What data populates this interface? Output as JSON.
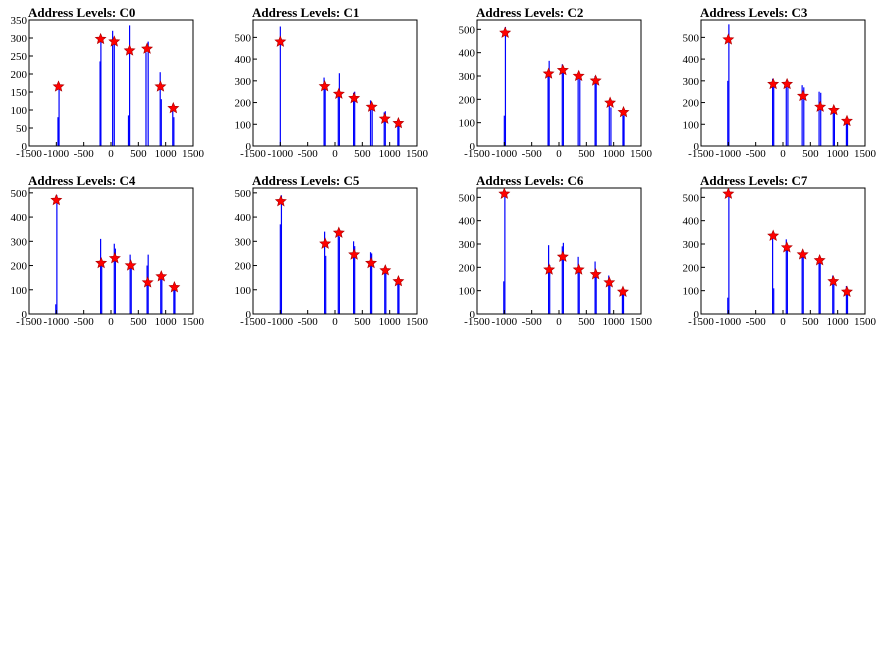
{
  "chart_data": [
    {
      "type": "bar",
      "title": "Address Levels: C0",
      "xlim": [
        -1500,
        1500
      ],
      "ylim": [
        0,
        350
      ],
      "xticks": [
        -1500,
        -1000,
        -500,
        0,
        500,
        1000,
        1500
      ],
      "yticks": [
        0,
        50,
        100,
        150,
        200,
        250,
        300,
        350
      ],
      "histogram": [
        {
          "x": -970,
          "y": 80
        },
        {
          "x": -950,
          "y": 175
        },
        {
          "x": -200,
          "y": 235
        },
        {
          "x": -185,
          "y": 300
        },
        {
          "x": 30,
          "y": 320
        },
        {
          "x": 60,
          "y": 300
        },
        {
          "x": 320,
          "y": 85
        },
        {
          "x": 340,
          "y": 335
        },
        {
          "x": 640,
          "y": 260
        },
        {
          "x": 680,
          "y": 290
        },
        {
          "x": 900,
          "y": 205
        },
        {
          "x": 920,
          "y": 130
        },
        {
          "x": 1130,
          "y": 115
        },
        {
          "x": 1150,
          "y": 80
        }
      ],
      "peaks": [
        {
          "x": -960,
          "y": 165
        },
        {
          "x": -190,
          "y": 297
        },
        {
          "x": 60,
          "y": 290
        },
        {
          "x": 340,
          "y": 265
        },
        {
          "x": 660,
          "y": 270
        },
        {
          "x": 905,
          "y": 165
        },
        {
          "x": 1140,
          "y": 105
        }
      ]
    },
    {
      "type": "bar",
      "title": "Address Levels: C1",
      "xlim": [
        -1500,
        1500
      ],
      "ylim": [
        0,
        580
      ],
      "xticks": [
        -1500,
        -1000,
        -500,
        0,
        500,
        1000,
        1500
      ],
      "yticks": [
        0,
        100,
        200,
        300,
        400,
        500
      ],
      "histogram": [
        {
          "x": -1000,
          "y": 550
        },
        {
          "x": -200,
          "y": 315
        },
        {
          "x": -180,
          "y": 290
        },
        {
          "x": 60,
          "y": 230
        },
        {
          "x": 80,
          "y": 335
        },
        {
          "x": 340,
          "y": 245
        },
        {
          "x": 360,
          "y": 250
        },
        {
          "x": 650,
          "y": 210
        },
        {
          "x": 680,
          "y": 190
        },
        {
          "x": 900,
          "y": 155
        },
        {
          "x": 920,
          "y": 160
        },
        {
          "x": 1150,
          "y": 115
        },
        {
          "x": 1170,
          "y": 100
        }
      ],
      "peaks": [
        {
          "x": -1000,
          "y": 480
        },
        {
          "x": -190,
          "y": 275
        },
        {
          "x": 70,
          "y": 240
        },
        {
          "x": 350,
          "y": 220
        },
        {
          "x": 670,
          "y": 180
        },
        {
          "x": 910,
          "y": 125
        },
        {
          "x": 1160,
          "y": 105
        }
      ]
    },
    {
      "type": "bar",
      "title": "Address Levels: C2",
      "xlim": [
        -1500,
        1500
      ],
      "ylim": [
        0,
        540
      ],
      "xticks": [
        -1500,
        -1000,
        -500,
        0,
        500,
        1000,
        1500
      ],
      "yticks": [
        0,
        100,
        200,
        300,
        400,
        500
      ],
      "histogram": [
        {
          "x": -1000,
          "y": 130
        },
        {
          "x": -980,
          "y": 510
        },
        {
          "x": -200,
          "y": 300
        },
        {
          "x": -180,
          "y": 365
        },
        {
          "x": 60,
          "y": 350
        },
        {
          "x": 80,
          "y": 340
        },
        {
          "x": 350,
          "y": 300
        },
        {
          "x": 380,
          "y": 295
        },
        {
          "x": 660,
          "y": 300
        },
        {
          "x": 680,
          "y": 280
        },
        {
          "x": 920,
          "y": 180
        },
        {
          "x": 950,
          "y": 165
        },
        {
          "x": 1170,
          "y": 145
        },
        {
          "x": 1190,
          "y": 130
        }
      ],
      "peaks": [
        {
          "x": -985,
          "y": 485
        },
        {
          "x": -190,
          "y": 310
        },
        {
          "x": 70,
          "y": 325
        },
        {
          "x": 360,
          "y": 300
        },
        {
          "x": 670,
          "y": 280
        },
        {
          "x": 935,
          "y": 185
        },
        {
          "x": 1180,
          "y": 145
        }
      ]
    },
    {
      "type": "bar",
      "title": "Address Levels: C3",
      "xlim": [
        -1500,
        1500
      ],
      "ylim": [
        0,
        580
      ],
      "xticks": [
        -1500,
        -1000,
        -500,
        0,
        500,
        1000,
        1500
      ],
      "yticks": [
        0,
        100,
        200,
        300,
        400,
        500
      ],
      "histogram": [
        {
          "x": -1010,
          "y": 300
        },
        {
          "x": -990,
          "y": 560
        },
        {
          "x": -190,
          "y": 310
        },
        {
          "x": -170,
          "y": 300
        },
        {
          "x": 60,
          "y": 280
        },
        {
          "x": 90,
          "y": 300
        },
        {
          "x": 350,
          "y": 280
        },
        {
          "x": 380,
          "y": 270
        },
        {
          "x": 660,
          "y": 250
        },
        {
          "x": 690,
          "y": 245
        },
        {
          "x": 920,
          "y": 170
        },
        {
          "x": 940,
          "y": 165
        },
        {
          "x": 1160,
          "y": 120
        },
        {
          "x": 1180,
          "y": 110
        }
      ],
      "peaks": [
        {
          "x": -1000,
          "y": 490
        },
        {
          "x": -180,
          "y": 285
        },
        {
          "x": 75,
          "y": 285
        },
        {
          "x": 365,
          "y": 230
        },
        {
          "x": 680,
          "y": 180
        },
        {
          "x": 930,
          "y": 165
        },
        {
          "x": 1170,
          "y": 115
        }
      ]
    },
    {
      "type": "bar",
      "title": "Address Levels: C4",
      "xlim": [
        -1500,
        1500
      ],
      "ylim": [
        0,
        520
      ],
      "xticks": [
        -1500,
        -1000,
        -500,
        0,
        500,
        1000,
        1500
      ],
      "yticks": [
        0,
        100,
        200,
        300,
        400,
        500
      ],
      "histogram": [
        {
          "x": -1010,
          "y": 40
        },
        {
          "x": -990,
          "y": 490
        },
        {
          "x": -190,
          "y": 310
        },
        {
          "x": -170,
          "y": 220
        },
        {
          "x": 60,
          "y": 290
        },
        {
          "x": 80,
          "y": 270
        },
        {
          "x": 350,
          "y": 245
        },
        {
          "x": 370,
          "y": 210
        },
        {
          "x": 660,
          "y": 200
        },
        {
          "x": 680,
          "y": 245
        },
        {
          "x": 910,
          "y": 160
        },
        {
          "x": 930,
          "y": 150
        },
        {
          "x": 1150,
          "y": 115
        },
        {
          "x": 1170,
          "y": 105
        }
      ],
      "peaks": [
        {
          "x": -1000,
          "y": 470
        },
        {
          "x": -180,
          "y": 210
        },
        {
          "x": 70,
          "y": 230
        },
        {
          "x": 360,
          "y": 200
        },
        {
          "x": 670,
          "y": 130
        },
        {
          "x": 920,
          "y": 155
        },
        {
          "x": 1160,
          "y": 110
        }
      ]
    },
    {
      "type": "bar",
      "title": "Address Levels: C5",
      "xlim": [
        -1500,
        1500
      ],
      "ylim": [
        0,
        520
      ],
      "xticks": [
        -1500,
        -1000,
        -500,
        0,
        500,
        1000,
        1500
      ],
      "yticks": [
        0,
        100,
        200,
        300,
        400,
        500
      ],
      "histogram": [
        {
          "x": -1000,
          "y": 370
        },
        {
          "x": -980,
          "y": 490
        },
        {
          "x": -190,
          "y": 340
        },
        {
          "x": -170,
          "y": 240
        },
        {
          "x": 60,
          "y": 330
        },
        {
          "x": 80,
          "y": 320
        },
        {
          "x": 340,
          "y": 300
        },
        {
          "x": 360,
          "y": 280
        },
        {
          "x": 650,
          "y": 255
        },
        {
          "x": 670,
          "y": 250
        },
        {
          "x": 910,
          "y": 190
        },
        {
          "x": 930,
          "y": 180
        },
        {
          "x": 1150,
          "y": 140
        },
        {
          "x": 1170,
          "y": 130
        }
      ],
      "peaks": [
        {
          "x": -990,
          "y": 465
        },
        {
          "x": -180,
          "y": 290
        },
        {
          "x": 70,
          "y": 335
        },
        {
          "x": 350,
          "y": 245
        },
        {
          "x": 660,
          "y": 210
        },
        {
          "x": 920,
          "y": 180
        },
        {
          "x": 1160,
          "y": 135
        }
      ]
    },
    {
      "type": "bar",
      "title": "Address Levels: C6",
      "xlim": [
        -1500,
        1500
      ],
      "ylim": [
        0,
        540
      ],
      "xticks": [
        -1500,
        -1000,
        -500,
        0,
        500,
        1000,
        1500
      ],
      "yticks": [
        0,
        100,
        200,
        300,
        400,
        500
      ],
      "histogram": [
        {
          "x": -1010,
          "y": 140
        },
        {
          "x": -990,
          "y": 530
        },
        {
          "x": -190,
          "y": 295
        },
        {
          "x": -170,
          "y": 210
        },
        {
          "x": 60,
          "y": 290
        },
        {
          "x": 80,
          "y": 305
        },
        {
          "x": 350,
          "y": 245
        },
        {
          "x": 370,
          "y": 200
        },
        {
          "x": 660,
          "y": 225
        },
        {
          "x": 680,
          "y": 180
        },
        {
          "x": 910,
          "y": 165
        },
        {
          "x": 930,
          "y": 140
        },
        {
          "x": 1160,
          "y": 110
        },
        {
          "x": 1180,
          "y": 95
        }
      ],
      "peaks": [
        {
          "x": -1000,
          "y": 515
        },
        {
          "x": -180,
          "y": 190
        },
        {
          "x": 70,
          "y": 245
        },
        {
          "x": 360,
          "y": 190
        },
        {
          "x": 670,
          "y": 170
        },
        {
          "x": 920,
          "y": 135
        },
        {
          "x": 1170,
          "y": 95
        }
      ]
    },
    {
      "type": "bar",
      "title": "Address Levels: C7",
      "xlim": [
        -1500,
        1500
      ],
      "ylim": [
        0,
        540
      ],
      "xticks": [
        -1500,
        -1000,
        -500,
        0,
        500,
        1000,
        1500
      ],
      "yticks": [
        0,
        100,
        200,
        300,
        400,
        500
      ],
      "histogram": [
        {
          "x": -1010,
          "y": 70
        },
        {
          "x": -990,
          "y": 535
        },
        {
          "x": -190,
          "y": 345
        },
        {
          "x": -170,
          "y": 110
        },
        {
          "x": 60,
          "y": 320
        },
        {
          "x": 80,
          "y": 300
        },
        {
          "x": 350,
          "y": 260
        },
        {
          "x": 370,
          "y": 255
        },
        {
          "x": 660,
          "y": 240
        },
        {
          "x": 680,
          "y": 235
        },
        {
          "x": 910,
          "y": 165
        },
        {
          "x": 930,
          "y": 150
        },
        {
          "x": 1160,
          "y": 120
        },
        {
          "x": 1180,
          "y": 90
        }
      ],
      "peaks": [
        {
          "x": -1000,
          "y": 515
        },
        {
          "x": -180,
          "y": 335
        },
        {
          "x": 70,
          "y": 285
        },
        {
          "x": 360,
          "y": 255
        },
        {
          "x": 670,
          "y": 230
        },
        {
          "x": 920,
          "y": 140
        },
        {
          "x": 1170,
          "y": 95
        }
      ]
    }
  ],
  "colors": {
    "histogram": "#0000ff",
    "marker": "#ff0000",
    "axis": "#000000"
  }
}
